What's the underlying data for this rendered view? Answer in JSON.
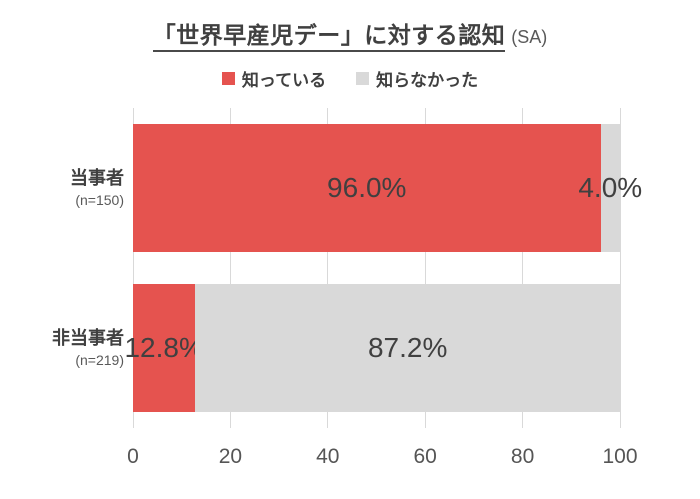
{
  "title": {
    "main": "「世界早産児デー」に対する認知",
    "suffix": "(SA)"
  },
  "legend": {
    "position": "top",
    "items": [
      {
        "key": "knows",
        "label": "知っている",
        "color": "#e5534f"
      },
      {
        "key": "didnt-know",
        "label": "知らなかった",
        "color": "#d9d9d9"
      }
    ]
  },
  "chart_data": {
    "type": "bar",
    "orientation": "horizontal",
    "stacked": true,
    "title": "「世界早産児デー」に対する認知 (SA)",
    "categories": [
      "当事者",
      "非当事者"
    ],
    "category_sublabels": [
      "(n=150)",
      "(n=219)"
    ],
    "series": [
      {
        "key": "knows",
        "name": "知っている",
        "color": "#e5534f",
        "values": [
          96.0,
          12.8
        ]
      },
      {
        "key": "didnt-know",
        "name": "知らなかった",
        "color": "#d9d9d9",
        "values": [
          4.0,
          87.2
        ]
      }
    ],
    "data_labels": [
      [
        "96.0%",
        "4.0%"
      ],
      [
        "12.8%",
        "87.2%"
      ]
    ],
    "xlabel": "",
    "ylabel": "",
    "xlim": [
      0,
      100
    ],
    "x_ticks": [
      0,
      20,
      40,
      60,
      80,
      100
    ],
    "grid": true,
    "gridline_color": "#d9d9d9",
    "legend_position": "top"
  },
  "colors": {
    "background": "#ffffff",
    "title_text": "#404040",
    "suffix_text": "#595959",
    "data_label_text": "#404040",
    "axis_tick_text": "#555555"
  }
}
